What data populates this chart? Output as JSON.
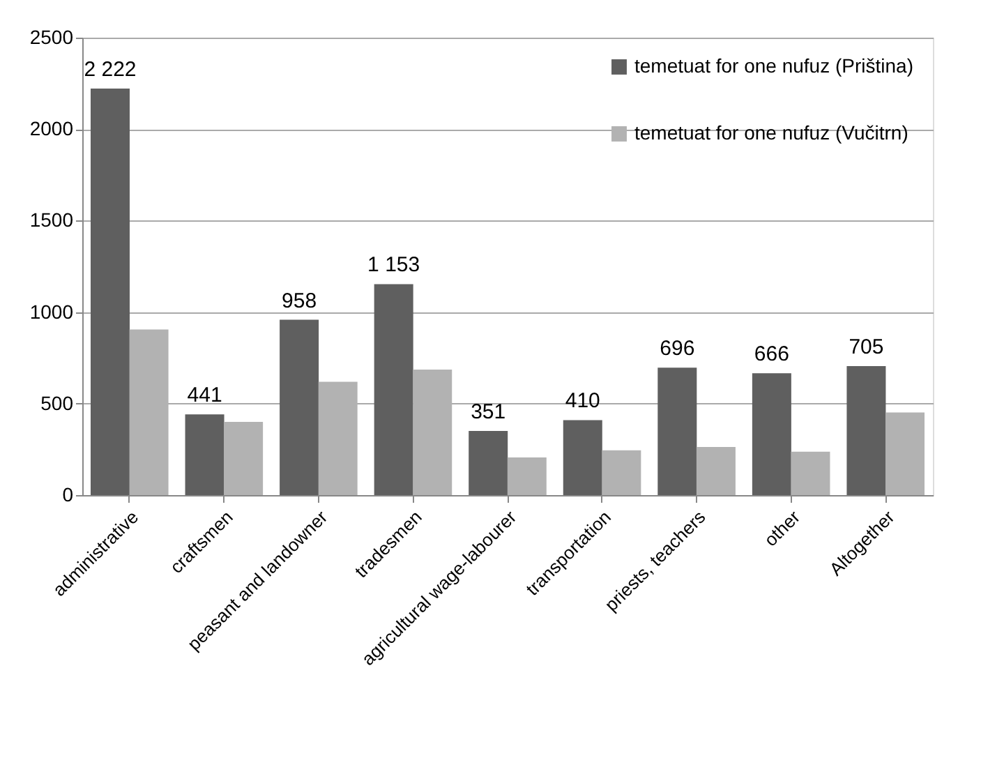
{
  "chart_data": {
    "type": "bar",
    "categories": [
      "administrative",
      "craftsmen",
      "peasant and landowner",
      "tradesmen",
      "agricultural wage-labourer",
      "transportation",
      "priests, teachers",
      "other",
      "Altogether"
    ],
    "series": [
      {
        "name": "temetuat for one nufuz (Priština)",
        "color": "#5f5f5f",
        "values": [
          2222,
          441,
          958,
          1153,
          351,
          410,
          696,
          666,
          705
        ],
        "value_labels": [
          "2 222",
          "441",
          "958",
          "1 153",
          "351",
          "410",
          "696",
          "666",
          "705"
        ]
      },
      {
        "name": "temetuat for one nufuz (Vučitrn)",
        "color": "#b2b2b2",
        "values": [
          905,
          400,
          619,
          686,
          206,
          245,
          263,
          237,
          452
        ]
      }
    ],
    "ylim": [
      0,
      2500
    ],
    "yticks": [
      0,
      500,
      1000,
      1500,
      2000,
      2500
    ],
    "grid": "y",
    "legend": "top right"
  }
}
